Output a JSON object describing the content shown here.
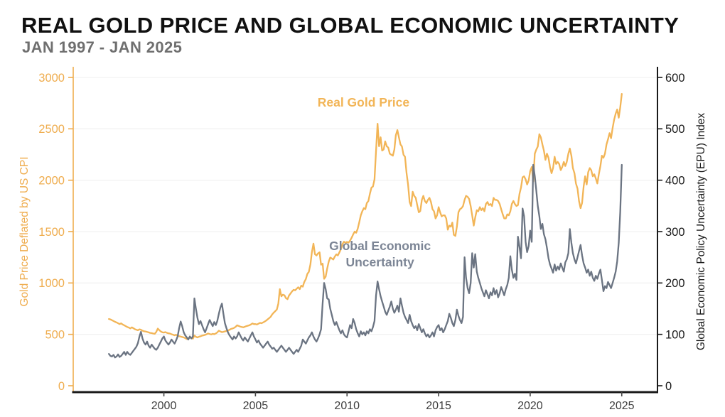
{
  "header": {
    "title": "REAL GOLD PRICE AND GLOBAL ECONOMIC UNCERTAINTY",
    "subtitle": "JAN 1997 - JAN 2025"
  },
  "colors": {
    "gold_line": "#F2B557",
    "gold_axis_text": "#EFAD4F",
    "gray_line": "#6B7482",
    "gray_label_text": "#7C8595",
    "right_axis_text": "#1A1A1A",
    "x_axis_text": "#3D3D3D",
    "grid_line": "#F2F2F2",
    "bottom_spine": "#1A1A1A"
  },
  "chart_data": {
    "type": "line",
    "title": "REAL GOLD PRICE AND GLOBAL ECONOMIC UNCERTAINTY",
    "subtitle": "JAN 1997 - JAN 2025",
    "x_range_shown": [
      1995.05,
      2026.95
    ],
    "x_ticks": [
      2000,
      2005,
      2010,
      2015,
      2020,
      2025
    ],
    "grid": "horizontal-faint",
    "axes": {
      "left": {
        "label": "Gold Price Deflated by US CPI",
        "min": 0,
        "max": 3000,
        "ticks": [
          0,
          500,
          1000,
          1500,
          2000,
          2500,
          3000
        ]
      },
      "right": {
        "label": "Global Economic Policy Uncertainty (EPU) Index",
        "min": 0,
        "max": 600,
        "ticks": [
          0,
          100,
          200,
          300,
          400,
          500,
          600
        ]
      }
    },
    "series": [
      {
        "name": "Real Gold Price",
        "axis": "left",
        "start_year": 1997.0,
        "step_months": 1,
        "values_by_year": [
          [
            650,
            645,
            638,
            630,
            622,
            616,
            608,
            600,
            607,
            596,
            588,
            580
          ],
          [
            572,
            566,
            558,
            568,
            560,
            550,
            545,
            540,
            549,
            545,
            536,
            530
          ],
          [
            528,
            524,
            519,
            514,
            512,
            508,
            505,
            523,
            556,
            541,
            528,
            520
          ],
          [
            518,
            522,
            515,
            510,
            508,
            501,
            496,
            491,
            496,
            488,
            482,
            478
          ],
          [
            474,
            470,
            463,
            455,
            462,
            470,
            464,
            458,
            489,
            476,
            470,
            477
          ],
          [
            481,
            487,
            491,
            495,
            501,
            509,
            503,
            499,
            505,
            501,
            509,
            519
          ],
          [
            536,
            528,
            521,
            525,
            529,
            533,
            537,
            545,
            553,
            557,
            563,
            573
          ],
          [
            588,
            582,
            576,
            572,
            568,
            574,
            580,
            584,
            588,
            596,
            606,
            600
          ],
          [
            600,
            596,
            604,
            612,
            608,
            616,
            624,
            634,
            646,
            658,
            672,
            695
          ],
          [
            712,
            726,
            742,
            800,
            940,
            870,
            886,
            880,
            852,
            842,
            878,
            898
          ],
          [
            918,
            934,
            928,
            944,
            958,
            940,
            974,
            964,
            1010,
            1038,
            1088,
            1108
          ],
          [
            1180,
            1300,
            1383,
            1280,
            1268,
            1288,
            1298,
            1178,
            1188,
            1040,
            1062,
            1140
          ],
          [
            1208,
            1248,
            1238,
            1228,
            1258,
            1278,
            1268,
            1298,
            1328,
            1378,
            1402,
            1390
          ],
          [
            1400,
            1392,
            1412,
            1440,
            1472,
            1500,
            1488,
            1528,
            1590,
            1658,
            1698,
            1728
          ],
          [
            1718,
            1778,
            1798,
            1868,
            1928,
            1938,
            2008,
            2280,
            2550,
            2330,
            2418,
            2288
          ],
          [
            2300,
            2378,
            2330,
            2318,
            2258,
            2248,
            2238,
            2298,
            2438,
            2488,
            2418,
            2348
          ],
          [
            2328,
            2248,
            2228,
            2068,
            1958,
            1788,
            1748,
            1888,
            1848,
            1828,
            1758,
            1688
          ],
          [
            1700,
            1808,
            1848,
            1798,
            1778,
            1808,
            1828,
            1788,
            1718,
            1698,
            1628,
            1658
          ],
          [
            1738,
            1688,
            1648,
            1658,
            1658,
            1628,
            1518,
            1558,
            1548,
            1588,
            1468,
            1458
          ],
          [
            1548,
            1688,
            1718,
            1728,
            1748,
            1808,
            1848,
            1838,
            1818,
            1748,
            1658,
            1558
          ],
          [
            1638,
            1708,
            1698,
            1738,
            1708,
            1728,
            1698,
            1768,
            1788,
            1758,
            1768,
            1748
          ],
          [
            1828,
            1808,
            1808,
            1798,
            1768,
            1718,
            1668,
            1628,
            1628,
            1668,
            1658,
            1698
          ],
          [
            1768,
            1798,
            1768,
            1748,
            1758,
            1868,
            1928,
            2028,
            2038,
            2008,
            1958,
            1998
          ],
          [
            2088,
            2128,
            1988,
            2258,
            2298,
            2328,
            2448,
            2418,
            2348,
            2288,
            2198,
            2258
          ],
          [
            2218,
            2128,
            2068,
            2118,
            2228,
            2158,
            2178,
            2158,
            2098,
            2128,
            2178,
            2138
          ],
          [
            2178,
            2258,
            2308,
            2238,
            2118,
            2068,
            1968,
            1918,
            1798,
            1728,
            1778,
            1938
          ],
          [
            2038,
            1958,
            2078,
            2118,
            2098,
            2038,
            2058,
            2018,
            1968,
            2058,
            2138,
            2238
          ],
          [
            2218,
            2258,
            2348,
            2398,
            2458,
            2408,
            2508,
            2588,
            2648,
            2688,
            2608,
            2708
          ],
          [
            2840
          ]
        ]
      },
      {
        "name": "Global Economic Uncertainty",
        "axis": "right",
        "start_year": 1997.0,
        "step_months": 1,
        "values_by_year": [
          [
            62,
            58,
            57,
            60,
            55,
            57,
            61,
            56,
            58,
            62,
            66,
            60
          ],
          [
            66,
            62,
            60,
            64,
            68,
            72,
            76,
            83,
            96,
            105,
            92,
            84
          ],
          [
            80,
            86,
            78,
            74,
            80,
            76,
            72,
            70,
            74,
            80,
            86,
            92
          ],
          [
            96,
            88,
            84,
            80,
            84,
            90,
            86,
            82,
            88,
            96,
            112,
            125
          ],
          [
            116,
            104,
            98,
            94,
            90,
            96,
            92,
            96,
            170,
            150,
            132,
            120
          ],
          [
            126,
            118,
            110,
            104,
            112,
            120,
            128,
            122,
            116,
            124,
            118,
            126
          ],
          [
            140,
            152,
            160,
            140,
            122,
            112,
            104,
            98,
            94,
            90,
            96,
            92
          ],
          [
            96,
            104,
            98,
            92,
            88,
            94,
            90,
            86,
            92,
            98,
            104,
            96
          ],
          [
            90,
            84,
            88,
            82,
            78,
            74,
            78,
            82,
            86,
            80,
            76,
            72
          ],
          [
            74,
            70,
            66,
            70,
            74,
            78,
            74,
            70,
            66,
            70,
            74,
            70
          ],
          [
            66,
            62,
            66,
            70,
            66,
            72,
            78,
            90,
            86,
            82,
            88,
            94
          ],
          [
            98,
            104,
            96,
            90,
            86,
            92,
            100,
            110,
            160,
            200,
            188,
            170
          ],
          [
            168,
            150,
            138,
            126,
            118,
            124,
            116,
            108,
            102,
            108,
            100,
            96
          ],
          [
            94,
            106,
            118,
            112,
            130,
            122,
            110,
            102,
            96,
            106,
            100,
            104
          ],
          [
            98,
            106,
            102,
            110,
            106,
            114,
            126,
            175,
            203,
            188,
            174,
            164
          ],
          [
            154,
            144,
            138,
            146,
            154,
            164,
            150,
            142,
            148,
            156,
            144,
            170
          ],
          [
            156,
            142,
            134,
            128,
            122,
            138,
            126,
            118,
            112,
            116,
            108,
            120
          ],
          [
            112,
            104,
            110,
            102,
            96,
            100,
            94,
            98,
            104,
            96,
            108,
            114
          ],
          [
            118,
            108,
            112,
            104,
            110,
            118,
            126,
            140,
            132,
            122,
            116,
            128
          ],
          [
            148,
            136,
            128,
            122,
            134,
            250,
            210,
            190,
            180,
            200,
            258,
            230
          ],
          [
            256,
            222,
            210,
            200,
            190,
            182,
            174,
            186,
            178,
            170,
            182,
            176
          ],
          [
            190,
            178,
            186,
            172,
            180,
            192,
            184,
            176,
            188,
            196,
            210,
            252
          ],
          [
            226,
            210,
            218,
            206,
            290,
            270,
            248,
            345,
            330,
            280,
            260,
            272
          ],
          [
            302,
            280,
            430,
            408,
            380,
            350,
            330,
            305,
            315,
            295,
            285,
            268
          ],
          [
            248,
            236,
            228,
            220,
            236,
            224,
            232,
            226,
            238,
            230,
            222,
            240
          ],
          [
            246,
            258,
            305,
            278,
            258,
            246,
            238,
            250,
            262,
            274,
            254,
            238
          ],
          [
            230,
            220,
            226,
            214,
            222,
            210,
            204,
            214,
            208,
            218,
            226,
            206
          ],
          [
            184,
            194,
            190,
            202,
            196,
            190,
            200,
            210,
            222,
            242,
            278,
            338
          ],
          [
            430
          ]
        ]
      }
    ],
    "annotations": [
      {
        "text": "Real Gold Price",
        "x": 2010.9,
        "y_left_scale": 2716,
        "color": "#F2B557"
      },
      {
        "text": "Global Economic",
        "x": 2011.8,
        "y_left_scale": 1321,
        "color": "#7C8595"
      },
      {
        "text": "Uncertainty",
        "x": 2011.8,
        "y_left_scale": 1162,
        "color": "#7C8595"
      }
    ]
  }
}
